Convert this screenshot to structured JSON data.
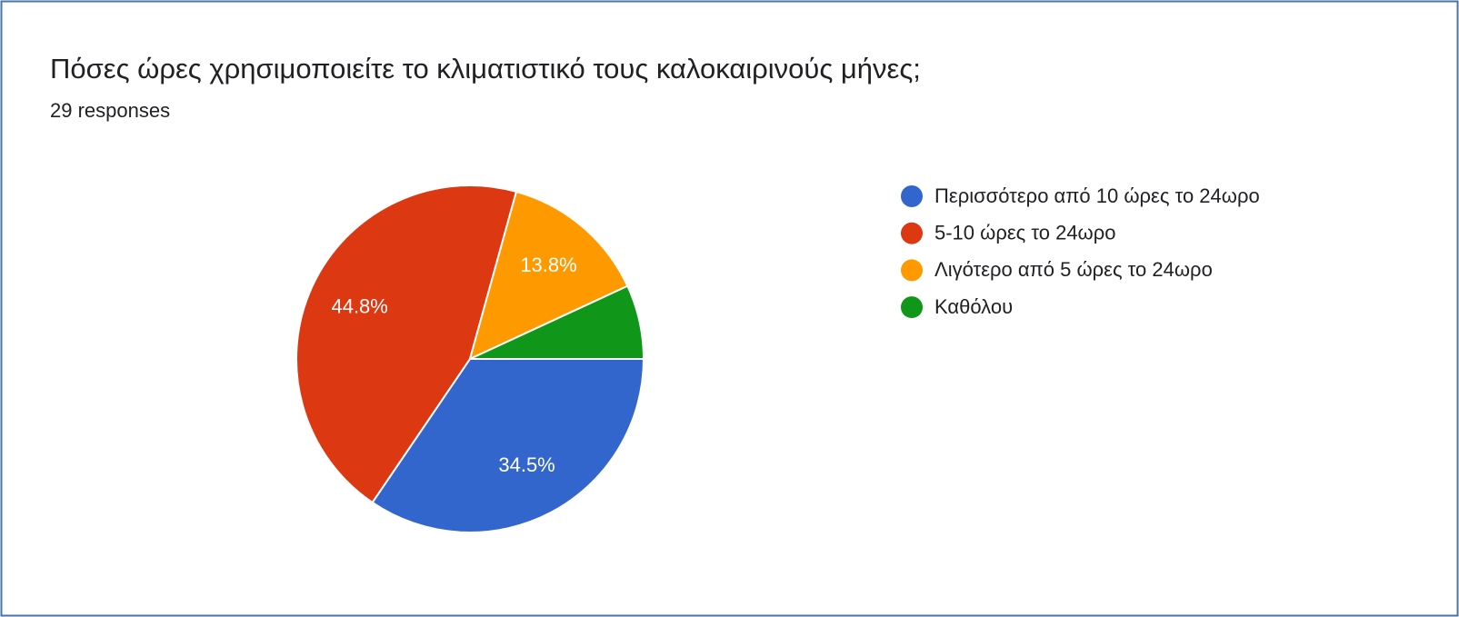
{
  "chart_data": {
    "type": "pie",
    "title": "Πόσες ώρες χρησιμοποιείτε το κλιματιστικό τους καλοκαιρινούς μήνες;",
    "subtitle": "29 responses",
    "categories": [
      "Περισσότερο από 10 ώρες το 24ωρο",
      "5-10 ώρες το 24ωρο",
      "Λιγότερο από 5 ώρες το 24ωρο",
      "Καθόλου"
    ],
    "values": [
      34.5,
      44.8,
      13.8,
      6.9
    ],
    "value_labels": [
      "34.5%",
      "44.8%",
      "13.8%",
      null
    ],
    "colors": [
      "#3366cc",
      "#dc3912",
      "#ff9900",
      "#109618"
    ],
    "legend": "right"
  }
}
